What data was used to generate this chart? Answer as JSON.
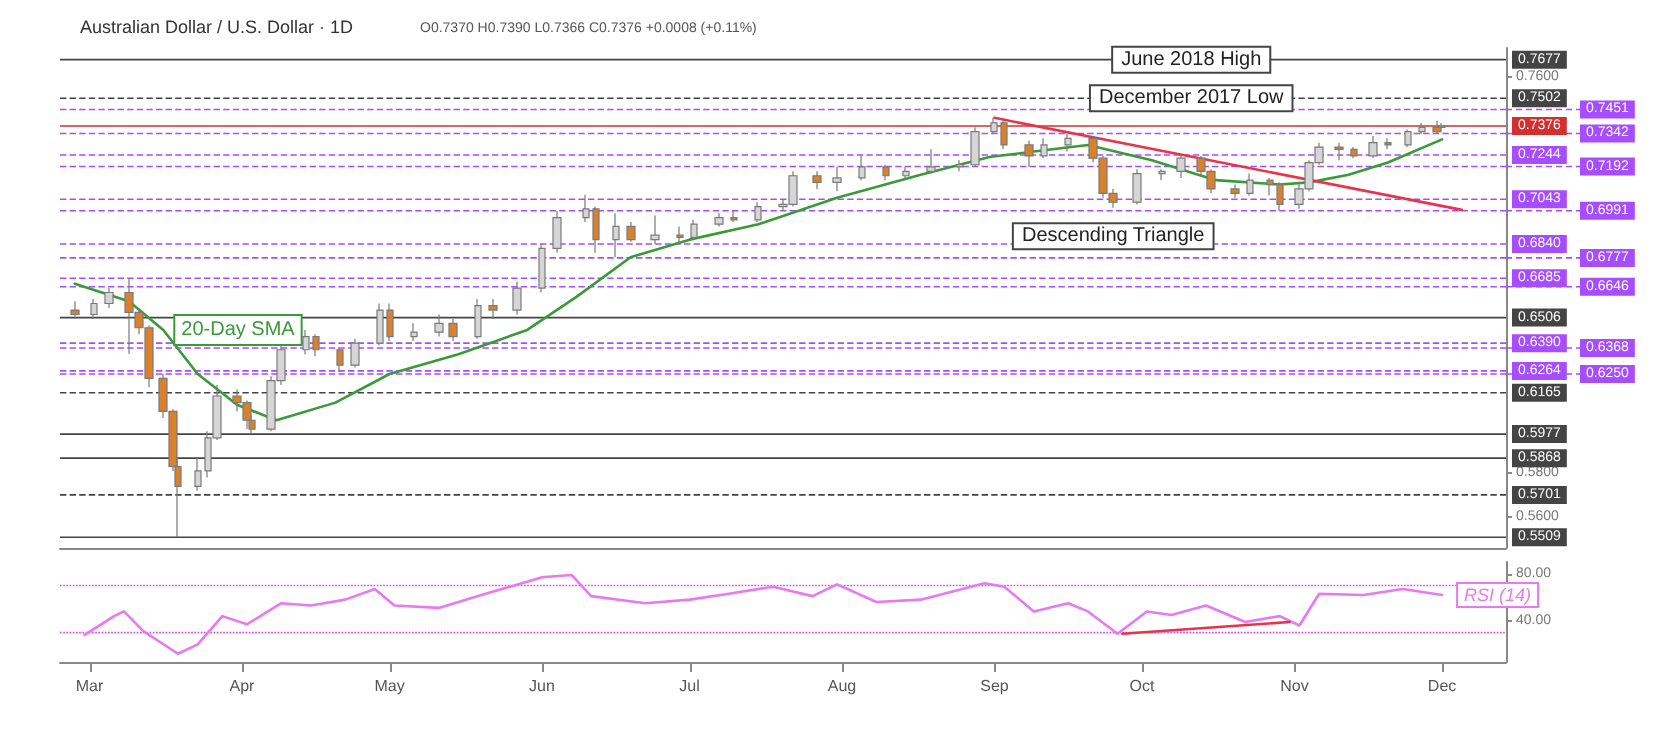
{
  "chart_data": [
    {
      "type": "candlestick",
      "title": "Australian Dollar / U.S. Dollar · 1D",
      "subtitle": "O0.7370 H0.7390 L0.7366 C0.7376 +0.0008 (+0.11%)",
      "x": [
        "--02-27",
        "--03-02",
        "--03-05",
        "--03-09",
        "--03-11",
        "--03-13",
        "--03-16",
        "--03-18",
        "--03-19",
        "--03-23",
        "--03-25",
        "--03-27",
        "--03-31",
        "--04-02",
        "--04-03",
        "--04-07",
        "--04-09",
        "--04-14",
        "--04-16",
        "--04-21",
        "--04-24",
        "--04-29",
        "--05-01",
        "--05-06",
        "--05-11",
        "--05-14",
        "--05-19",
        "--05-22",
        "--05-27",
        "--06-01",
        "--06-04",
        "--06-10",
        "--06-12",
        "--06-16",
        "--06-19",
        "--06-24",
        "--06-29",
        "--07-02",
        "--07-07",
        "--07-10",
        "--07-15",
        "--07-20",
        "--07-22",
        "--07-27",
        "--07-31",
        "--08-05",
        "--08-10",
        "--08-14",
        "--08-19",
        "--08-25",
        "--08-28",
        "--09-01",
        "--09-03",
        "--09-08",
        "--09-11",
        "--09-16",
        "--09-21",
        "--09-23",
        "--09-25",
        "--09-30",
        "--10-05",
        "--10-09",
        "--10-13",
        "--10-15",
        "--10-20",
        "--10-23",
        "--10-27",
        "--10-29",
        "--11-02",
        "--11-04",
        "--11-06",
        "--11-10",
        "--11-13",
        "--11-17",
        "--11-20",
        "--11-24",
        "--11-27",
        "--11-30",
        "--12-01"
      ],
      "ohlc": [
        [
          0.654,
          0.658,
          0.65,
          0.652
        ],
        [
          0.652,
          0.659,
          0.65,
          0.657
        ],
        [
          0.657,
          0.664,
          0.655,
          0.662
        ],
        [
          0.662,
          0.6685,
          0.6342,
          0.653
        ],
        [
          0.653,
          0.655,
          0.643,
          0.646
        ],
        [
          0.646,
          0.647,
          0.619,
          0.623
        ],
        [
          0.623,
          0.625,
          0.605,
          0.608
        ],
        [
          0.608,
          0.609,
          0.581,
          0.583
        ],
        [
          0.583,
          0.587,
          0.5509,
          0.574
        ],
        [
          0.574,
          0.587,
          0.572,
          0.581
        ],
        [
          0.581,
          0.599,
          0.578,
          0.596
        ],
        [
          0.596,
          0.62,
          0.595,
          0.615
        ],
        [
          0.615,
          0.618,
          0.608,
          0.612
        ],
        [
          0.612,
          0.613,
          0.6,
          0.604
        ],
        [
          0.604,
          0.606,
          0.5977,
          0.6
        ],
        [
          0.6,
          0.624,
          0.599,
          0.622
        ],
        [
          0.622,
          0.638,
          0.62,
          0.636
        ],
        [
          0.636,
          0.645,
          0.634,
          0.642
        ],
        [
          0.642,
          0.643,
          0.633,
          0.636
        ],
        [
          0.636,
          0.637,
          0.626,
          0.629
        ],
        [
          0.629,
          0.641,
          0.628,
          0.639
        ],
        [
          0.639,
          0.657,
          0.638,
          0.654
        ],
        [
          0.654,
          0.657,
          0.64,
          0.642
        ],
        [
          0.642,
          0.648,
          0.64,
          0.644
        ],
        [
          0.644,
          0.652,
          0.642,
          0.648
        ],
        [
          0.648,
          0.65,
          0.64,
          0.642
        ],
        [
          0.642,
          0.659,
          0.641,
          0.656
        ],
        [
          0.656,
          0.659,
          0.65,
          0.654
        ],
        [
          0.654,
          0.667,
          0.652,
          0.664
        ],
        [
          0.664,
          0.684,
          0.662,
          0.682
        ],
        [
          0.682,
          0.699,
          0.68,
          0.696
        ],
        [
          0.696,
          0.7064,
          0.694,
          0.7
        ],
        [
          0.7,
          0.701,
          0.68,
          0.686
        ],
        [
          0.686,
          0.698,
          0.678,
          0.692
        ],
        [
          0.692,
          0.694,
          0.685,
          0.686
        ],
        [
          0.686,
          0.697,
          0.684,
          0.688
        ],
        [
          0.688,
          0.692,
          0.684,
          0.687
        ],
        [
          0.687,
          0.695,
          0.686,
          0.693
        ],
        [
          0.693,
          0.698,
          0.692,
          0.696
        ],
        [
          0.696,
          0.699,
          0.694,
          0.695
        ],
        [
          0.695,
          0.703,
          0.694,
          0.701
        ],
        [
          0.701,
          0.704,
          0.699,
          0.702
        ],
        [
          0.702,
          0.717,
          0.701,
          0.715
        ],
        [
          0.715,
          0.717,
          0.709,
          0.712
        ],
        [
          0.712,
          0.719,
          0.708,
          0.714
        ],
        [
          0.714,
          0.724,
          0.713,
          0.719
        ],
        [
          0.719,
          0.72,
          0.713,
          0.715
        ],
        [
          0.715,
          0.719,
          0.713,
          0.717
        ],
        [
          0.717,
          0.727,
          0.716,
          0.719
        ],
        [
          0.719,
          0.722,
          0.717,
          0.72
        ],
        [
          0.72,
          0.737,
          0.719,
          0.735
        ],
        [
          0.735,
          0.7413,
          0.734,
          0.739
        ],
        [
          0.739,
          0.74,
          0.727,
          0.729
        ],
        [
          0.729,
          0.731,
          0.719,
          0.724
        ],
        [
          0.724,
          0.732,
          0.723,
          0.729
        ],
        [
          0.729,
          0.734,
          0.726,
          0.732
        ],
        [
          0.732,
          0.733,
          0.721,
          0.723
        ],
        [
          0.723,
          0.724,
          0.705,
          0.707
        ],
        [
          0.707,
          0.709,
          0.7005,
          0.703
        ],
        [
          0.703,
          0.718,
          0.702,
          0.716
        ],
        [
          0.716,
          0.718,
          0.713,
          0.717
        ],
        [
          0.717,
          0.724,
          0.714,
          0.723
        ],
        [
          0.723,
          0.724,
          0.715,
          0.717
        ],
        [
          0.717,
          0.718,
          0.707,
          0.709
        ],
        [
          0.709,
          0.711,
          0.705,
          0.707
        ],
        [
          0.707,
          0.716,
          0.706,
          0.713
        ],
        [
          0.713,
          0.714,
          0.706,
          0.711
        ],
        [
          0.711,
          0.712,
          0.6991,
          0.702
        ],
        [
          0.702,
          0.711,
          0.7,
          0.709
        ],
        [
          0.709,
          0.722,
          0.708,
          0.721
        ],
        [
          0.721,
          0.73,
          0.72,
          0.728
        ],
        [
          0.728,
          0.73,
          0.722,
          0.727
        ],
        [
          0.727,
          0.728,
          0.723,
          0.724
        ],
        [
          0.724,
          0.733,
          0.723,
          0.73
        ],
        [
          0.73,
          0.732,
          0.727,
          0.729
        ],
        [
          0.729,
          0.736,
          0.728,
          0.735
        ],
        [
          0.735,
          0.739,
          0.734,
          0.737
        ],
        [
          0.737,
          0.74,
          0.734,
          0.735
        ],
        [
          0.737,
          0.739,
          0.7366,
          0.7376
        ]
      ],
      "colors": [
        "#d9822b",
        "#d6d6d6",
        "#d6d6d6",
        "#d9822b",
        "#d9822b",
        "#d9822b",
        "#d9822b",
        "#d9822b",
        "#d9822b",
        "#d6d6d6",
        "#d6d6d6",
        "#d6d6d6",
        "#d9822b",
        "#d9822b",
        "#d9822b",
        "#d6d6d6",
        "#d6d6d6",
        "#d6d6d6",
        "#d9822b",
        "#d9822b",
        "#d6d6d6",
        "#d6d6d6",
        "#d9822b",
        "#d6d6d6",
        "#d6d6d6",
        "#d9822b",
        "#d6d6d6",
        "#d9822b",
        "#d6d6d6",
        "#d6d6d6",
        "#d6d6d6",
        "#d6d6d6",
        "#d9822b",
        "#d6d6d6",
        "#d9822b",
        "#d6d6d6",
        "#d9822b",
        "#d6d6d6",
        "#d6d6d6",
        "#d9822b",
        "#d6d6d6",
        "#d6d6d6",
        "#d6d6d6",
        "#d9822b",
        "#d6d6d6",
        "#d6d6d6",
        "#d9822b",
        "#d6d6d6",
        "#d6d6d6",
        "#d6d6d6",
        "#d6d6d6",
        "#d6d6d6",
        "#d9822b",
        "#d9822b",
        "#d6d6d6",
        "#d6d6d6",
        "#d9822b",
        "#d9822b",
        "#d9822b",
        "#d6d6d6",
        "#d6d6d6",
        "#d6d6d6",
        "#d9822b",
        "#d9822b",
        "#d9822b",
        "#d6d6d6",
        "#d9822b",
        "#d9822b",
        "#d6d6d6",
        "#d6d6d6",
        "#d6d6d6",
        "#d9822b",
        "#d9822b",
        "#d6d6d6",
        "#d9822b",
        "#d6d6d6",
        "#d6d6d6",
        "#d9822b",
        "#d6d6d6"
      ],
      "series": [
        {
          "type": "line",
          "name": "20-Day SMA",
          "color": "#3a9a3a",
          "x": [
            "--02-27",
            "--03-09",
            "--03-16",
            "--03-23",
            "--03-31",
            "--04-08",
            "--04-20",
            "--05-01",
            "--05-15",
            "--05-29",
            "--06-08",
            "--06-19",
            "--07-01",
            "--07-15",
            "--07-31",
            "--08-17",
            "--08-31",
            "--09-09",
            "--09-20",
            "--10-03",
            "--10-16",
            "--10-29",
            "--11-04",
            "--11-12",
            "--11-20",
            "--12-01"
          ],
          "values": [
            0.666,
            0.658,
            0.645,
            0.625,
            0.611,
            0.604,
            0.612,
            0.625,
            0.634,
            0.645,
            0.66,
            0.678,
            0.686,
            0.693,
            0.705,
            0.7155,
            0.7235,
            0.726,
            0.729,
            0.722,
            0.713,
            0.711,
            0.712,
            0.7155,
            0.721,
            0.7315
          ]
        },
        {
          "type": "line",
          "color": "#e8334a",
          "x": [
            "--09-01",
            "--12-05"
          ],
          "values": [
            0.7413,
            0.6995
          ]
        }
      ],
      "xlim": [
        "--02-24",
        "--12-14"
      ],
      "ylim": [
        0.546,
        0.773
      ],
      "yticks": [
        {
          "value": 0.56,
          "label": "0.5600"
        },
        {
          "value": 0.58,
          "label": "0.5800"
        },
        {
          "value": 0.76,
          "label": "0.7600"
        }
      ],
      "tick_labels": "y",
      "ref_lines": [
        {
          "axis": "y",
          "value": 0.7677,
          "label": "0.7677",
          "color": "#444444",
          "line_style": "solid"
        },
        {
          "axis": "y",
          "value": 0.7502,
          "label": "0.7502",
          "color": "#444444",
          "line_style": "dashed"
        },
        {
          "axis": "y",
          "value": 0.7451,
          "label": "0.7451",
          "color": "#a64dff",
          "line_style": "dashed"
        },
        {
          "axis": "y",
          "value": 0.7376,
          "label": "0.7376",
          "color": "#d32f2f",
          "line_style": "solid"
        },
        {
          "axis": "y",
          "value": 0.7342,
          "label": "0.7342",
          "color": "#a64dff",
          "line_style": "dashed"
        },
        {
          "axis": "y",
          "value": 0.7244,
          "label": "0.7244",
          "color": "#a64dff",
          "line_style": "dashed"
        },
        {
          "axis": "y",
          "value": 0.7192,
          "label": "0.7192",
          "color": "#a64dff",
          "line_style": "dashed"
        },
        {
          "axis": "y",
          "value": 0.7043,
          "label": "0.7043",
          "color": "#a64dff",
          "line_style": "dashed"
        },
        {
          "axis": "y",
          "value": 0.6991,
          "label": "0.6991",
          "color": "#a64dff",
          "line_style": "dashed"
        },
        {
          "axis": "y",
          "value": 0.684,
          "label": "0.6840",
          "color": "#a64dff",
          "line_style": "dashed"
        },
        {
          "axis": "y",
          "value": 0.6777,
          "label": "0.6777",
          "color": "#a64dff",
          "line_style": "dashed"
        },
        {
          "axis": "y",
          "value": 0.6685,
          "label": "0.6685",
          "color": "#a64dff",
          "line_style": "dashed"
        },
        {
          "axis": "y",
          "value": 0.6646,
          "label": "0.6646",
          "color": "#a64dff",
          "line_style": "dashed"
        },
        {
          "axis": "y",
          "value": 0.6506,
          "label": "0.6506",
          "color": "#444444",
          "line_style": "solid"
        },
        {
          "axis": "y",
          "value": 0.639,
          "label": "0.6390",
          "color": "#a64dff",
          "line_style": "dashed"
        },
        {
          "axis": "y",
          "value": 0.6368,
          "label": "0.6368",
          "color": "#a64dff",
          "line_style": "dashed"
        },
        {
          "axis": "y",
          "value": 0.6264,
          "label": "0.6264",
          "color": "#a64dff",
          "line_style": "dashed"
        },
        {
          "axis": "y",
          "value": 0.625,
          "label": "0.6250",
          "color": "#a64dff",
          "line_style": "dashed"
        },
        {
          "axis": "y",
          "value": 0.6165,
          "label": "0.6165",
          "color": "#444444",
          "line_style": "dashed"
        },
        {
          "axis": "y",
          "value": 0.5977,
          "label": "0.5977",
          "color": "#444444",
          "line_style": "solid"
        },
        {
          "axis": "y",
          "value": 0.5868,
          "label": "0.5868",
          "color": "#444444",
          "line_style": "solid"
        },
        {
          "axis": "y",
          "value": 0.5701,
          "label": "0.5701",
          "color": "#444444",
          "line_style": "dashed"
        },
        {
          "axis": "y",
          "value": 0.5509,
          "label": "0.5509",
          "color": "#444444",
          "line_style": "solid"
        }
      ],
      "annotations": [
        {
          "text": "June 2018 High",
          "x": "--10-11",
          "y": 0.7677
        },
        {
          "text": "December 2017 Low",
          "x": "--10-11",
          "y": 0.7502
        },
        "Descending Triangle"
      ]
    },
    {
      "type": "line",
      "series": [
        {
          "name": "RSI (14)",
          "color": "#e879f0",
          "x": [
            "--02-29",
            "--03-06",
            "--03-08",
            "--03-12",
            "--03-19",
            "--03-23",
            "--03-28",
            "--04-02",
            "--04-09",
            "--04-15",
            "--04-22",
            "--04-28",
            "--05-02",
            "--05-11",
            "--05-19",
            "--06-01",
            "--06-07",
            "--06-11",
            "--06-22",
            "--07-01",
            "--07-09",
            "--07-18",
            "--07-26",
            "--07-31",
            "--08-08",
            "--08-17",
            "--08-30",
            "--09-03",
            "--09-09",
            "--09-16",
            "--09-20",
            "--09-26",
            "--10-02",
            "--10-07",
            "--10-14",
            "--10-22",
            "--10-29",
            "--11-02",
            "--11-06",
            "--11-15",
            "--11-23",
            "--12-01"
          ],
          "values": [
            28,
            44,
            48,
            31,
            12,
            20,
            44,
            37,
            55,
            53,
            58,
            67,
            53,
            51,
            61,
            77,
            79,
            61,
            55,
            58,
            63,
            69,
            61,
            71,
            56,
            58,
            72,
            69,
            48,
            55,
            48,
            29,
            48,
            45,
            53,
            39,
            44,
            36,
            63,
            62,
            67,
            62
          ]
        },
        {
          "color": "#e8334a",
          "x": [
            "--09-27",
            "--10-31"
          ],
          "values": [
            29,
            39
          ]
        }
      ],
      "xlim": [
        "--02-24",
        "--12-14"
      ],
      "ylim": [
        5,
        90
      ],
      "yticks": [
        {
          "value": 40,
          "label": "40.00"
        },
        {
          "value": 80,
          "label": "80.00"
        }
      ],
      "xticks": [
        {
          "value": "--03-01",
          "label": "Mar"
        },
        {
          "value": "--04-01",
          "label": "Apr"
        },
        {
          "value": "--05-01",
          "label": "May"
        },
        {
          "value": "--06-01",
          "label": "Jun"
        },
        {
          "value": "--07-01",
          "label": "Jul"
        },
        {
          "value": "--08-01",
          "label": "Aug"
        },
        {
          "value": "--09-01",
          "label": "Sep"
        },
        {
          "value": "--10-01",
          "label": "Oct"
        },
        {
          "value": "--11-01",
          "label": "Nov"
        },
        {
          "value": "--12-01",
          "label": "Dec"
        }
      ],
      "ref_lines": [
        {
          "axis": "y",
          "value": 70,
          "color": "#e040fb",
          "line_style": "dotted"
        },
        {
          "axis": "y",
          "value": 30,
          "color": "#e040fb",
          "line_style": "dotted"
        }
      ]
    }
  ]
}
